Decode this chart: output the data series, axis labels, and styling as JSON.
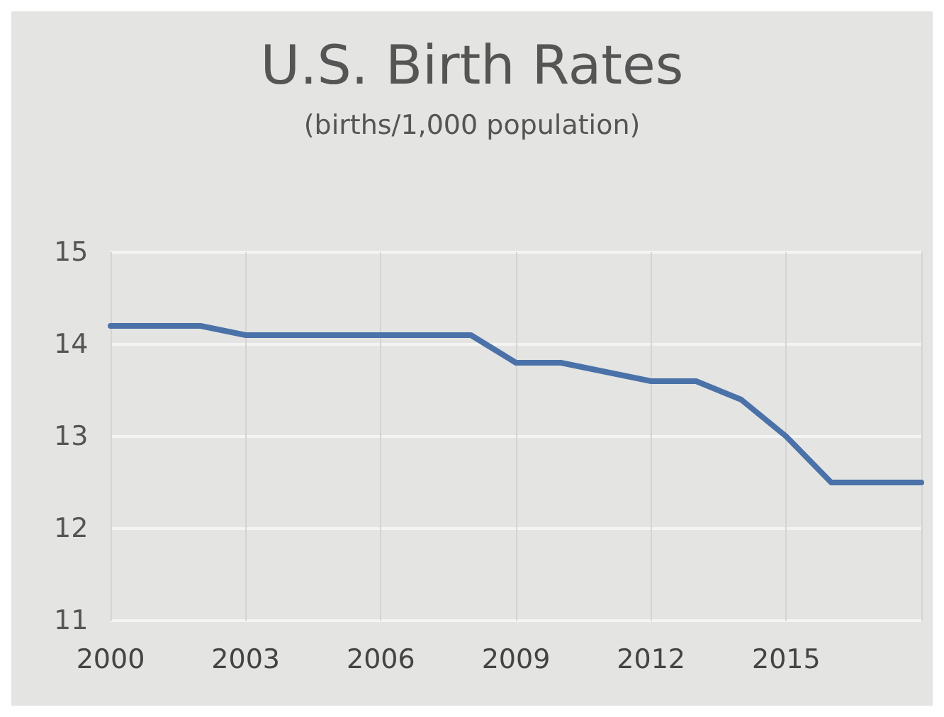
{
  "chart_data": {
    "type": "line",
    "title": "U.S. Birth Rates",
    "subtitle": "(births/1,000 population)",
    "categories": [
      "2000",
      null,
      null,
      "2003",
      null,
      null,
      "2006",
      null,
      null,
      "2009",
      null,
      null,
      "2012",
      null,
      null,
      "2015",
      null,
      null,
      null
    ],
    "series": [
      {
        "color": "#4a72a8",
        "values": [
          14.2,
          14.2,
          14.2,
          14.1,
          14.1,
          14.1,
          14.1,
          14.1,
          14.1,
          13.8,
          13.8,
          13.7,
          13.6,
          13.6,
          13.4,
          13.0,
          12.5,
          12.5,
          12.5
        ]
      }
    ],
    "ylim": [
      11,
      15
    ],
    "yticks": [
      11,
      12,
      13,
      14,
      15
    ],
    "grid": true,
    "marker": "none",
    "line_style": "solid"
  }
}
